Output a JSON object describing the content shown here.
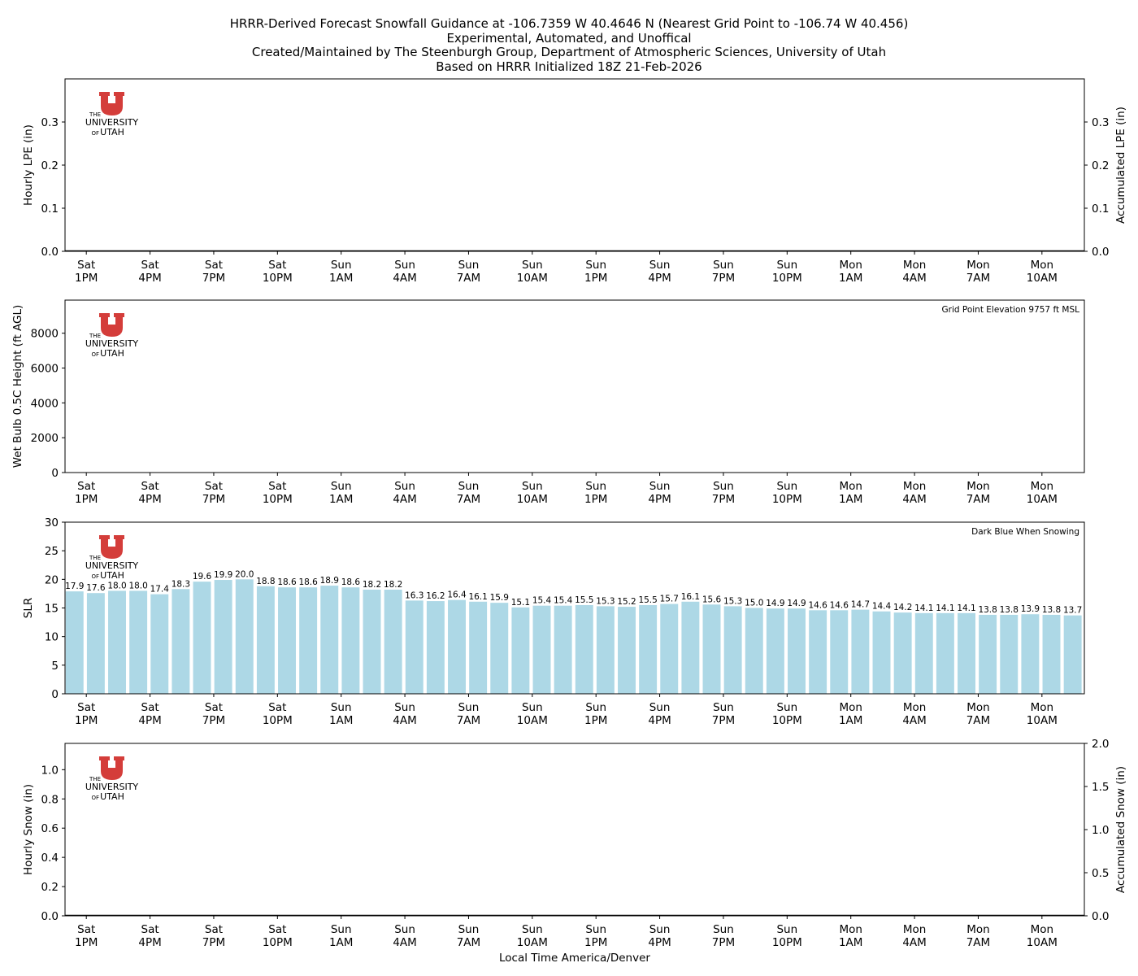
{
  "title_lines": [
    "HRRR-Derived Forecast Snowfall Guidance at -106.7359 W 40.4646 N (Nearest Grid Point to -106.74 W 40.456)",
    "Experimental, Automated, and Unoffical",
    "Created/Maintained by The Steenburgh Group, Department of Atmospheric Sciences, University of Utah",
    "Based on HRRR Initialized 18Z 21-Feb-2026"
  ],
  "logo": {
    "word_the": "THE",
    "word_university": "UNIVERSITY",
    "word_of": "OF",
    "word_utah": "UTAH",
    "color": "#d43d3a"
  },
  "x_axis": {
    "label": "Local Time America/Denver",
    "tick_labels": [
      [
        "Sat",
        "1PM"
      ],
      [
        "Sat",
        "4PM"
      ],
      [
        "Sat",
        "7PM"
      ],
      [
        "Sat",
        "10PM"
      ],
      [
        "Sun",
        "1AM"
      ],
      [
        "Sun",
        "4AM"
      ],
      [
        "Sun",
        "7AM"
      ],
      [
        "Sun",
        "10AM"
      ],
      [
        "Sun",
        "1PM"
      ],
      [
        "Sun",
        "4PM"
      ],
      [
        "Sun",
        "7PM"
      ],
      [
        "Sun",
        "10PM"
      ],
      [
        "Mon",
        "1AM"
      ],
      [
        "Mon",
        "4AM"
      ],
      [
        "Mon",
        "7AM"
      ],
      [
        "Mon",
        "10AM"
      ]
    ]
  },
  "chart_data": [
    {
      "type": "bar",
      "ylabel": "Hourly LPE (in)",
      "ylabel_right": "Accumulated LPE (in)",
      "ylim": [
        0,
        0.4
      ],
      "yticks": [
        "0.0",
        "0.1",
        "0.2",
        "0.3"
      ],
      "yticks_right": [
        "0.0",
        "0.1",
        "0.2",
        "0.3"
      ],
      "values": [],
      "annotation": ""
    },
    {
      "type": "bar",
      "ylabel": "Wet Bulb 0.5C Height (ft AGL)",
      "ylim": [
        0,
        9900
      ],
      "yticks": [
        "0",
        "2000",
        "4000",
        "6000",
        "8000"
      ],
      "values": [],
      "annotation": "Grid Point Elevation 9757 ft MSL"
    },
    {
      "type": "bar",
      "ylabel": "SLR",
      "ylim": [
        0,
        30
      ],
      "yticks": [
        "0",
        "5",
        "10",
        "15",
        "20",
        "25",
        "30"
      ],
      "bar_color": "#add8e6",
      "annotation": "Dark Blue When Snowing",
      "values": [
        17.9,
        17.6,
        18.0,
        18.0,
        17.4,
        18.3,
        19.6,
        19.9,
        20.0,
        18.8,
        18.6,
        18.6,
        18.9,
        18.6,
        18.2,
        18.2,
        16.3,
        16.2,
        16.4,
        16.1,
        15.9,
        15.1,
        15.4,
        15.4,
        15.5,
        15.3,
        15.2,
        15.5,
        15.7,
        16.1,
        15.6,
        15.3,
        15.0,
        14.9,
        14.9,
        14.6,
        14.6,
        14.7,
        14.4,
        14.2,
        14.1,
        14.1,
        14.1,
        13.8,
        13.8,
        13.9,
        13.8,
        13.7
      ]
    },
    {
      "type": "bar",
      "ylabel": "Hourly Snow (in)",
      "ylabel_right": "Accumulated Snow (in)",
      "ylim": [
        0,
        1.18
      ],
      "yticks": [
        "0.0",
        "0.2",
        "0.4",
        "0.6",
        "0.8",
        "1.0"
      ],
      "ylim_right": [
        0,
        2.0
      ],
      "yticks_right": [
        "0.0",
        "0.5",
        "1.0",
        "1.5",
        "2.0"
      ],
      "values": [],
      "annotation": ""
    }
  ]
}
